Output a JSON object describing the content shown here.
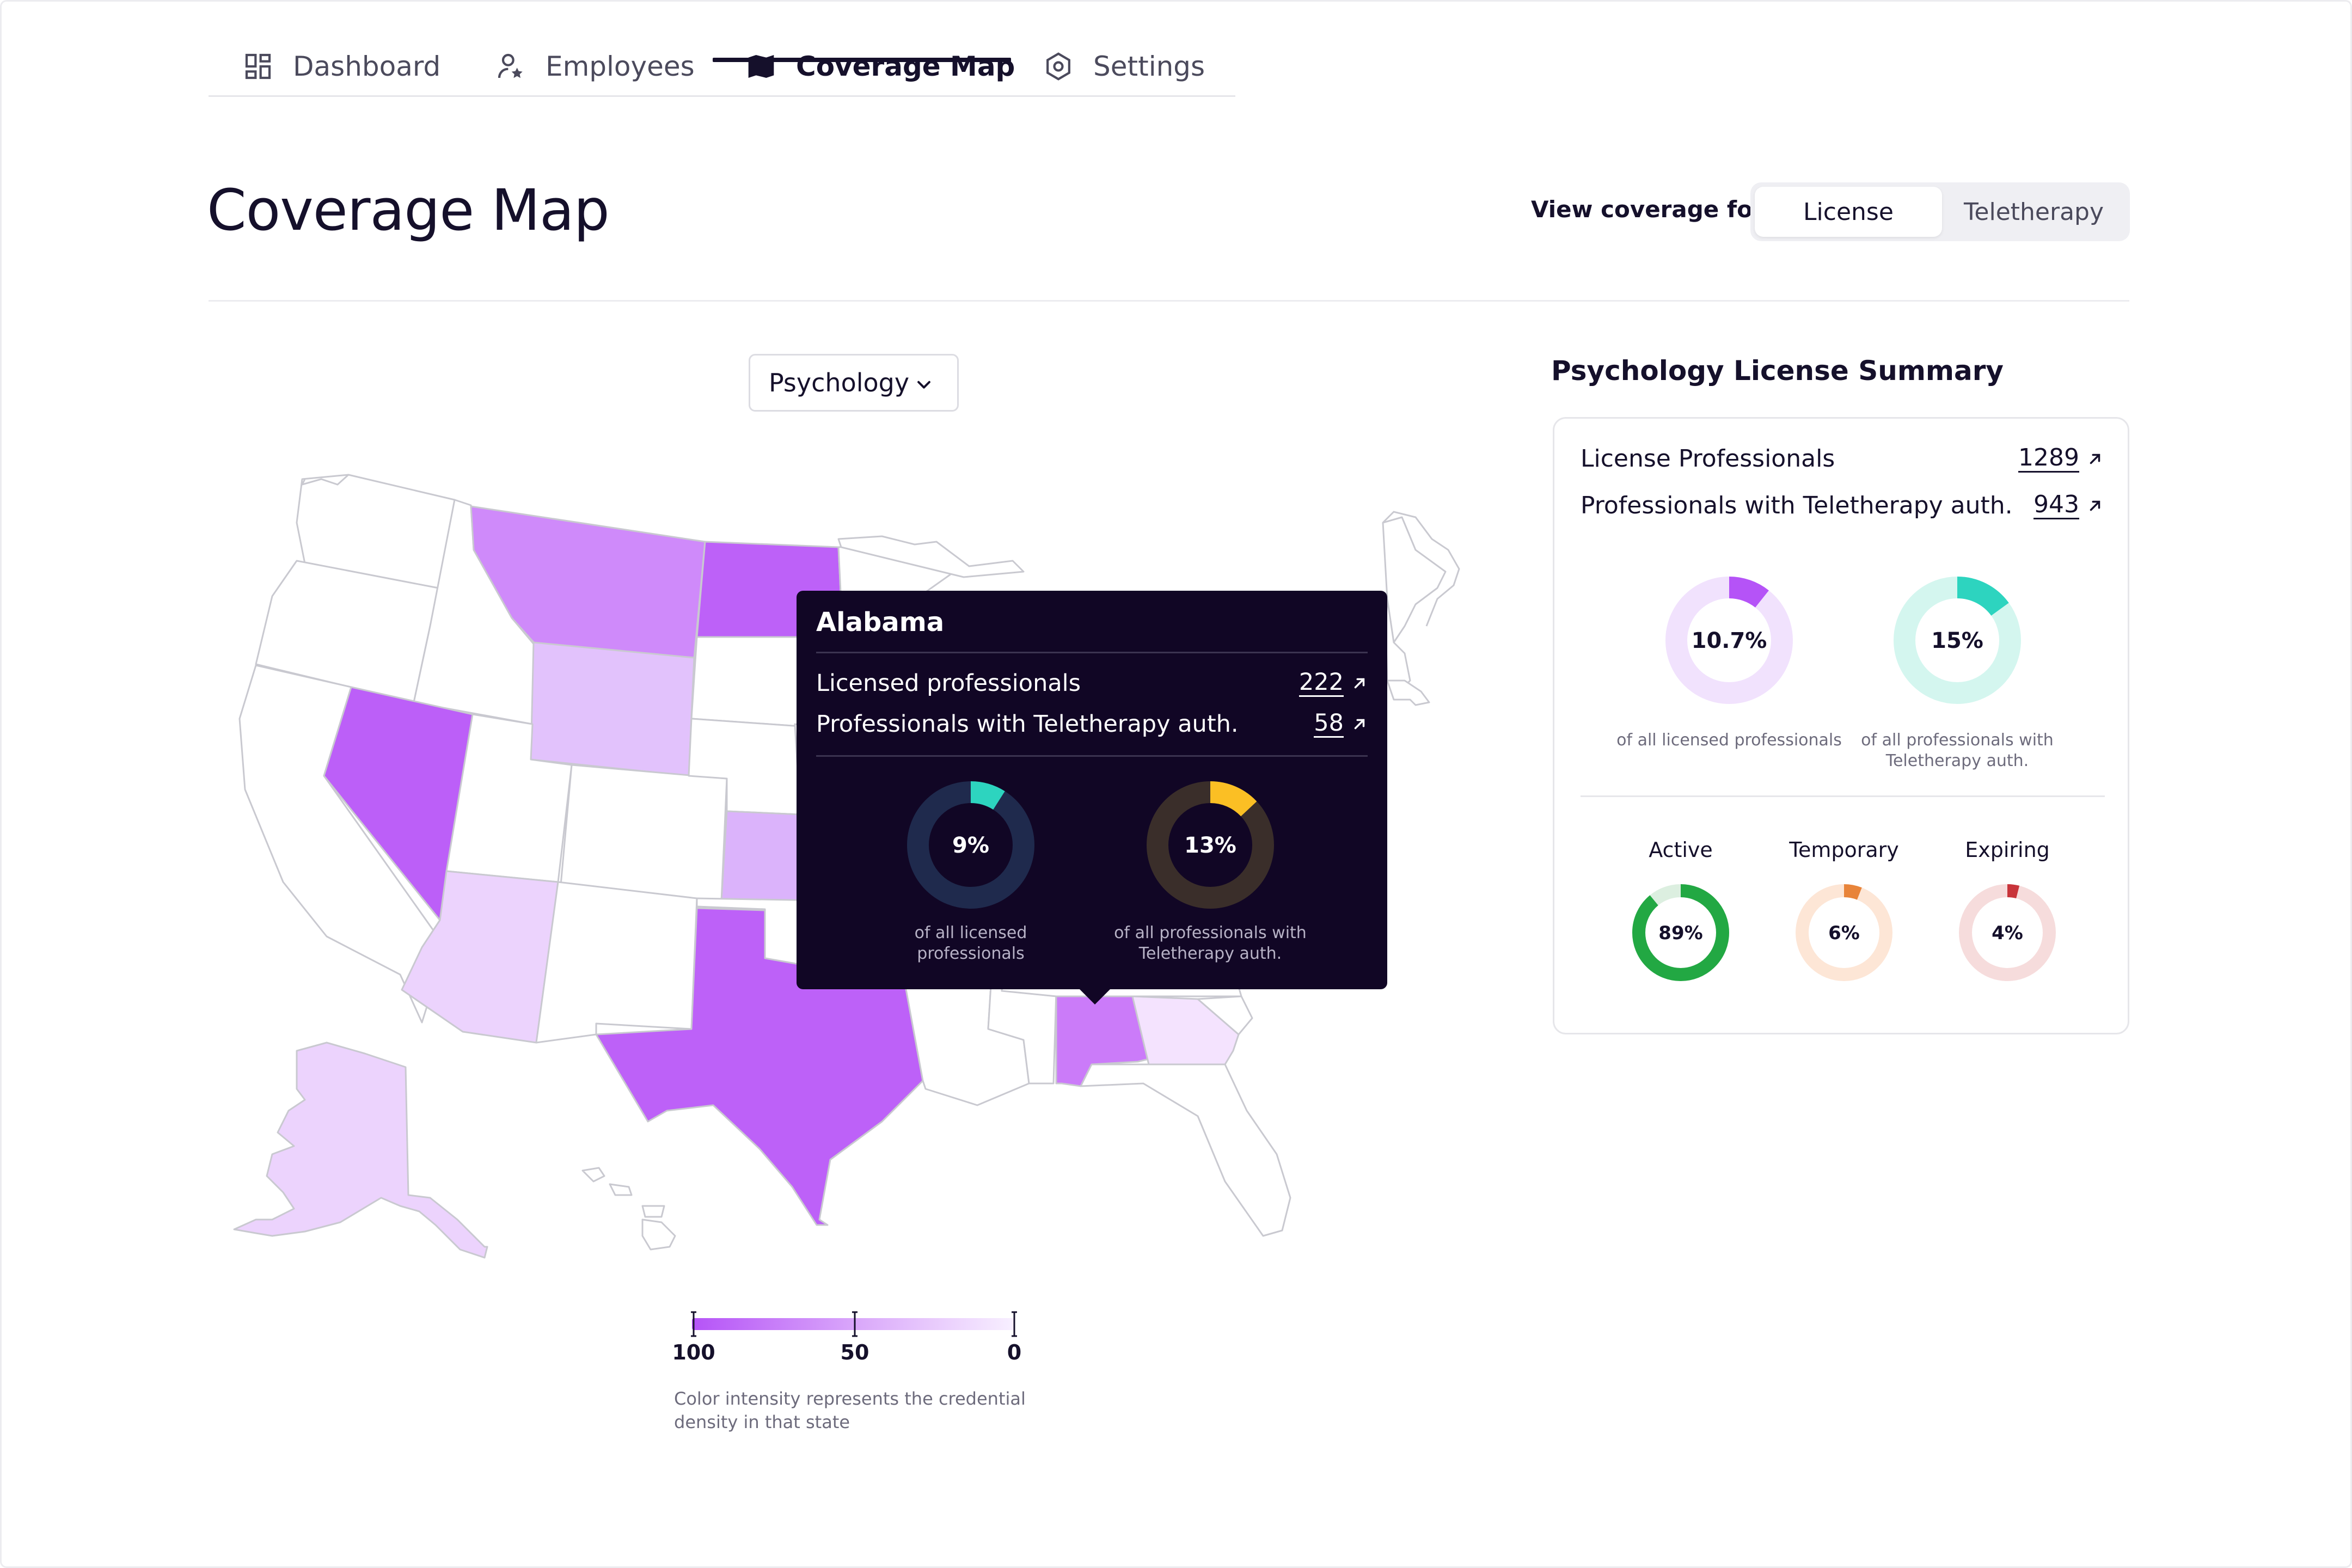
{
  "nav": {
    "tabs": [
      {
        "label": "Dashboard",
        "icon": "dashboard-icon",
        "active": false
      },
      {
        "label": "Employees",
        "icon": "user-star-icon",
        "active": false
      },
      {
        "label": "Coverage Map",
        "icon": "map-icon",
        "active": true
      },
      {
        "label": "Settings",
        "icon": "gear-icon",
        "active": false
      }
    ]
  },
  "header": {
    "title": "Coverage Map",
    "toggle_label": "View coverage for:",
    "toggle_options": [
      "License",
      "Teletherapy"
    ],
    "toggle_selected": "License"
  },
  "filter": {
    "selected": "Psychology"
  },
  "map": {
    "highlight_color": "#b553f7",
    "states_shaded": {
      "Montana": 0.7,
      "North Dakota": 0.85,
      "Wyoming": 0.4,
      "Nevada": 0.85,
      "Arizona": 0.3,
      "Texas": 0.85,
      "Colorado/Kansas region": 0.35,
      "Alabama": 0.7,
      "Georgia": 0.2,
      "Alaska": 0.3
    }
  },
  "tooltip": {
    "state": "Alabama",
    "rows": [
      {
        "label": "Licensed professionals",
        "value": "222"
      },
      {
        "label": "Professionals with Teletherapy auth.",
        "value": "58"
      }
    ],
    "donuts": [
      {
        "percent": "9%",
        "value": 9,
        "color": "#2dd4bf",
        "track": "#1f2a4d",
        "caption": "of all licensed professionals"
      },
      {
        "percent": "13%",
        "value": 13,
        "color": "#fbbf24",
        "track": "#3a2e2a",
        "caption": "of all professionals with Teletherapy auth."
      }
    ]
  },
  "summary": {
    "title": "Psychology License Summary",
    "rows": [
      {
        "label": "License Professionals",
        "value": "1289"
      },
      {
        "label": "Professionals with Teletherapy auth.",
        "value": "943"
      }
    ],
    "donuts": [
      {
        "percent": "10.7%",
        "value": 10.7,
        "color": "#b553f7",
        "track": "#f1e2fd",
        "caption": "of all licensed professionals"
      },
      {
        "percent": "15%",
        "value": 15,
        "color": "#2dd4bf",
        "track": "#d4f6ef",
        "caption": "of all professionals with Teletherapy auth."
      }
    ],
    "status": [
      {
        "label": "Active",
        "percent": "89%",
        "value": 89,
        "color": "#22a843",
        "track": "#dcefe0"
      },
      {
        "label": "Temporary",
        "percent": "6%",
        "value": 6,
        "color": "#e8843a",
        "track": "#fde6d6"
      },
      {
        "label": "Expiring",
        "percent": "4%",
        "value": 4,
        "color": "#c8343a",
        "track": "#f6dcdc"
      }
    ]
  },
  "legend": {
    "max_label": "100",
    "mid_label": "50",
    "min_label": "0",
    "note": "Color intensity represents the credential density in that state"
  }
}
